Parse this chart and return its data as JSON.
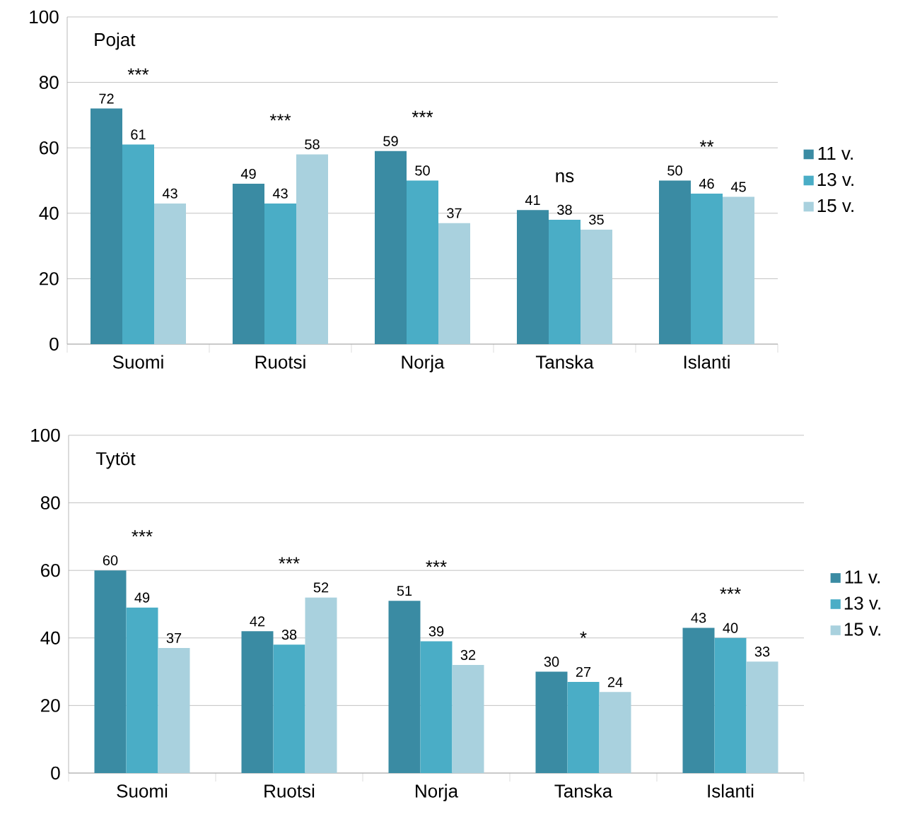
{
  "chart_data": [
    {
      "type": "bar",
      "title": "Pojat",
      "categories": [
        "Suomi",
        "Ruotsi",
        "Norja",
        "Tanska",
        "Islanti"
      ],
      "series": [
        {
          "name": "11 v.",
          "color": "#3a8ba3",
          "values": [
            72,
            49,
            59,
            41,
            50
          ]
        },
        {
          "name": "13 v.",
          "color": "#4aadc6",
          "values": [
            61,
            43,
            50,
            38,
            46
          ]
        },
        {
          "name": "15 v.",
          "color": "#a9d1de",
          "values": [
            43,
            58,
            37,
            35,
            45
          ]
        }
      ],
      "ylim": [
        0,
        100
      ],
      "yticks": [
        0,
        20,
        40,
        60,
        80,
        100
      ],
      "grid": "y",
      "legend": "right",
      "data_labels": true,
      "annotations": [
        "***",
        "***",
        "***",
        "ns",
        "**"
      ]
    },
    {
      "type": "bar",
      "title": "Tytöt",
      "categories": [
        "Suomi",
        "Ruotsi",
        "Norja",
        "Tanska",
        "Islanti"
      ],
      "series": [
        {
          "name": "11 v.",
          "color": "#3a8ba3",
          "values": [
            60,
            42,
            51,
            30,
            43
          ]
        },
        {
          "name": "13 v.",
          "color": "#4aadc6",
          "values": [
            49,
            38,
            39,
            27,
            40
          ]
        },
        {
          "name": "15 v.",
          "color": "#a9d1de",
          "values": [
            37,
            52,
            32,
            24,
            33
          ]
        }
      ],
      "ylim": [
        0,
        100
      ],
      "yticks": [
        0,
        20,
        40,
        60,
        80,
        100
      ],
      "grid": "y",
      "legend": "right",
      "data_labels": true,
      "annotations": [
        "***",
        "***",
        "***",
        "*",
        "***"
      ]
    }
  ]
}
